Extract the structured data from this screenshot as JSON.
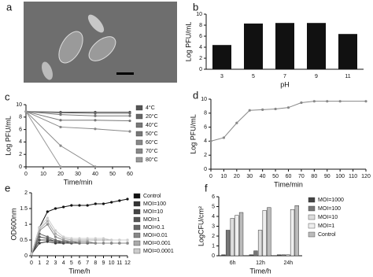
{
  "chart_data": [
    {
      "type": "image",
      "label": "a"
    },
    {
      "type": "bar",
      "label": "b",
      "categories": [
        "3",
        "5",
        "7",
        "9",
        "11"
      ],
      "values": [
        4.4,
        8.3,
        8.4,
        8.4,
        6.4
      ],
      "color": "#111111",
      "ylim": [
        0,
        10
      ],
      "yticks": [
        0,
        2,
        4,
        6,
        8,
        10
      ],
      "xlabel": "pH",
      "ylabel": "Log PFU/mL"
    },
    {
      "type": "line",
      "label": "c",
      "x": [
        0,
        20,
        40,
        60
      ],
      "xlim": [
        0,
        60
      ],
      "xticks": [
        0,
        10,
        20,
        30,
        40,
        50,
        60
      ],
      "ylim": [
        0,
        10
      ],
      "yticks": [
        0,
        2,
        4,
        6,
        8,
        10
      ],
      "xlabel": "Time/min",
      "ylabel": "Log PFU/mL",
      "legend": "right",
      "series": [
        {
          "name": "4°C",
          "color": "#555555",
          "values": [
            8.9,
            8.8,
            8.8,
            8.8
          ]
        },
        {
          "name": "20°C",
          "color": "#666666",
          "values": [
            8.9,
            8.7,
            8.6,
            8.6
          ]
        },
        {
          "name": "40°C",
          "color": "#777777",
          "values": [
            8.9,
            8.4,
            8.2,
            8.2
          ]
        },
        {
          "name": "50°C",
          "color": "#777777",
          "values": [
            8.9,
            7.5,
            7.5,
            7.4
          ]
        },
        {
          "name": "60°C",
          "color": "#888888",
          "values": [
            8.9,
            6.4,
            6.1,
            5.7
          ]
        },
        {
          "name": "70°C",
          "color": "#888888",
          "values": [
            8.9,
            3.4,
            0,
            null
          ]
        },
        {
          "name": "80°C",
          "color": "#999999",
          "values": [
            8.9,
            0,
            null,
            null
          ]
        }
      ]
    },
    {
      "type": "line",
      "label": "d",
      "x": [
        0,
        10,
        20,
        30,
        40,
        50,
        60,
        70,
        80,
        90,
        100,
        120
      ],
      "xlim": [
        0,
        120
      ],
      "xticks": [
        0,
        10,
        20,
        30,
        40,
        50,
        60,
        70,
        80,
        90,
        100,
        110,
        120
      ],
      "ylim": [
        0,
        10
      ],
      "yticks": [
        0,
        2,
        4,
        6,
        8,
        10
      ],
      "xlabel": "Time/min",
      "ylabel": "Log PFU/mL",
      "series": [
        {
          "name": null,
          "color": "#888888",
          "values": [
            4.0,
            4.5,
            6.6,
            8.4,
            8.5,
            8.6,
            8.8,
            9.5,
            9.7,
            9.7,
            9.7,
            9.7
          ]
        }
      ]
    },
    {
      "type": "line",
      "label": "e",
      "x": [
        0,
        1,
        2,
        3,
        4,
        5,
        6,
        7,
        8,
        9,
        10,
        11,
        12
      ],
      "xlim": [
        0,
        12
      ],
      "xticks": [
        0,
        1,
        2,
        3,
        4,
        5,
        6,
        7,
        8,
        9,
        10,
        11,
        12
      ],
      "ylim": [
        0,
        2
      ],
      "yticks": [
        0,
        0.5,
        1,
        1.5,
        2
      ],
      "xlabel": "Time/h",
      "ylabel": "OD600nm",
      "legend": "right",
      "series": [
        {
          "name": "Control",
          "color": "#111111",
          "values": [
            0.05,
            0.9,
            1.4,
            1.5,
            1.55,
            1.6,
            1.6,
            1.6,
            1.65,
            1.65,
            1.7,
            1.75,
            1.8
          ]
        },
        {
          "name": "MOI=100",
          "color": "#333333",
          "values": [
            0.05,
            0.4,
            0.45,
            0.4,
            0.4,
            0.4,
            0.4,
            0.4,
            0.4,
            0.4,
            0.4,
            0.4,
            0.4
          ]
        },
        {
          "name": "MOI=10",
          "color": "#444444",
          "values": [
            0.05,
            0.5,
            0.5,
            0.45,
            0.4,
            0.4,
            0.4,
            0.4,
            0.4,
            0.4,
            0.4,
            0.4,
            0.4
          ]
        },
        {
          "name": "MOI=1",
          "color": "#555555",
          "values": [
            0.05,
            0.6,
            0.55,
            0.45,
            0.45,
            0.4,
            0.4,
            0.4,
            0.4,
            0.4,
            0.4,
            0.4,
            0.4
          ]
        },
        {
          "name": "MOI=0.1",
          "color": "#666666",
          "values": [
            0.05,
            0.7,
            0.6,
            0.5,
            0.45,
            0.45,
            0.4,
            0.4,
            0.4,
            0.4,
            0.4,
            0.4,
            0.4
          ]
        },
        {
          "name": "MOI=0.01",
          "color": "#888888",
          "values": [
            0.05,
            0.8,
            1.0,
            0.6,
            0.5,
            0.45,
            0.45,
            0.45,
            0.4,
            0.4,
            0.4,
            0.4,
            0.4
          ]
        },
        {
          "name": "MOI=0.001",
          "color": "#aaaaaa",
          "values": [
            0.05,
            0.85,
            1.1,
            0.7,
            0.55,
            0.5,
            0.5,
            0.5,
            0.5,
            0.5,
            0.5,
            0.5,
            0.5
          ]
        },
        {
          "name": "MOI=0.0001",
          "color": "#cccccc",
          "values": [
            0.05,
            0.9,
            1.2,
            0.8,
            0.6,
            0.55,
            0.55,
            0.55,
            0.55,
            0.55,
            0.5,
            0.5,
            0.5
          ]
        }
      ]
    },
    {
      "type": "bar",
      "label": "f",
      "categories": [
        "6h",
        "12h",
        "24h"
      ],
      "ylim": [
        0,
        6
      ],
      "yticks": [
        0,
        1,
        2,
        3,
        4,
        5,
        6
      ],
      "xlabel": "Time/h",
      "ylabel": "LogCFU/cm²",
      "legend": "right",
      "series": [
        {
          "name": "MOI=1000",
          "color": "#444444",
          "values": [
            0.1,
            0.1,
            0.1
          ]
        },
        {
          "name": "MOI=100",
          "color": "#777777",
          "values": [
            2.6,
            0.5,
            0.1
          ]
        },
        {
          "name": "MOI=10",
          "color": "#dddddd",
          "values": [
            3.8,
            2.6,
            0.1
          ]
        },
        {
          "name": "MOI=1",
          "color": "#eeeeee",
          "values": [
            4.1,
            4.6,
            4.7
          ]
        },
        {
          "name": "Control",
          "color": "#bbbbbb",
          "values": [
            4.4,
            4.9,
            5.1
          ]
        }
      ]
    }
  ]
}
